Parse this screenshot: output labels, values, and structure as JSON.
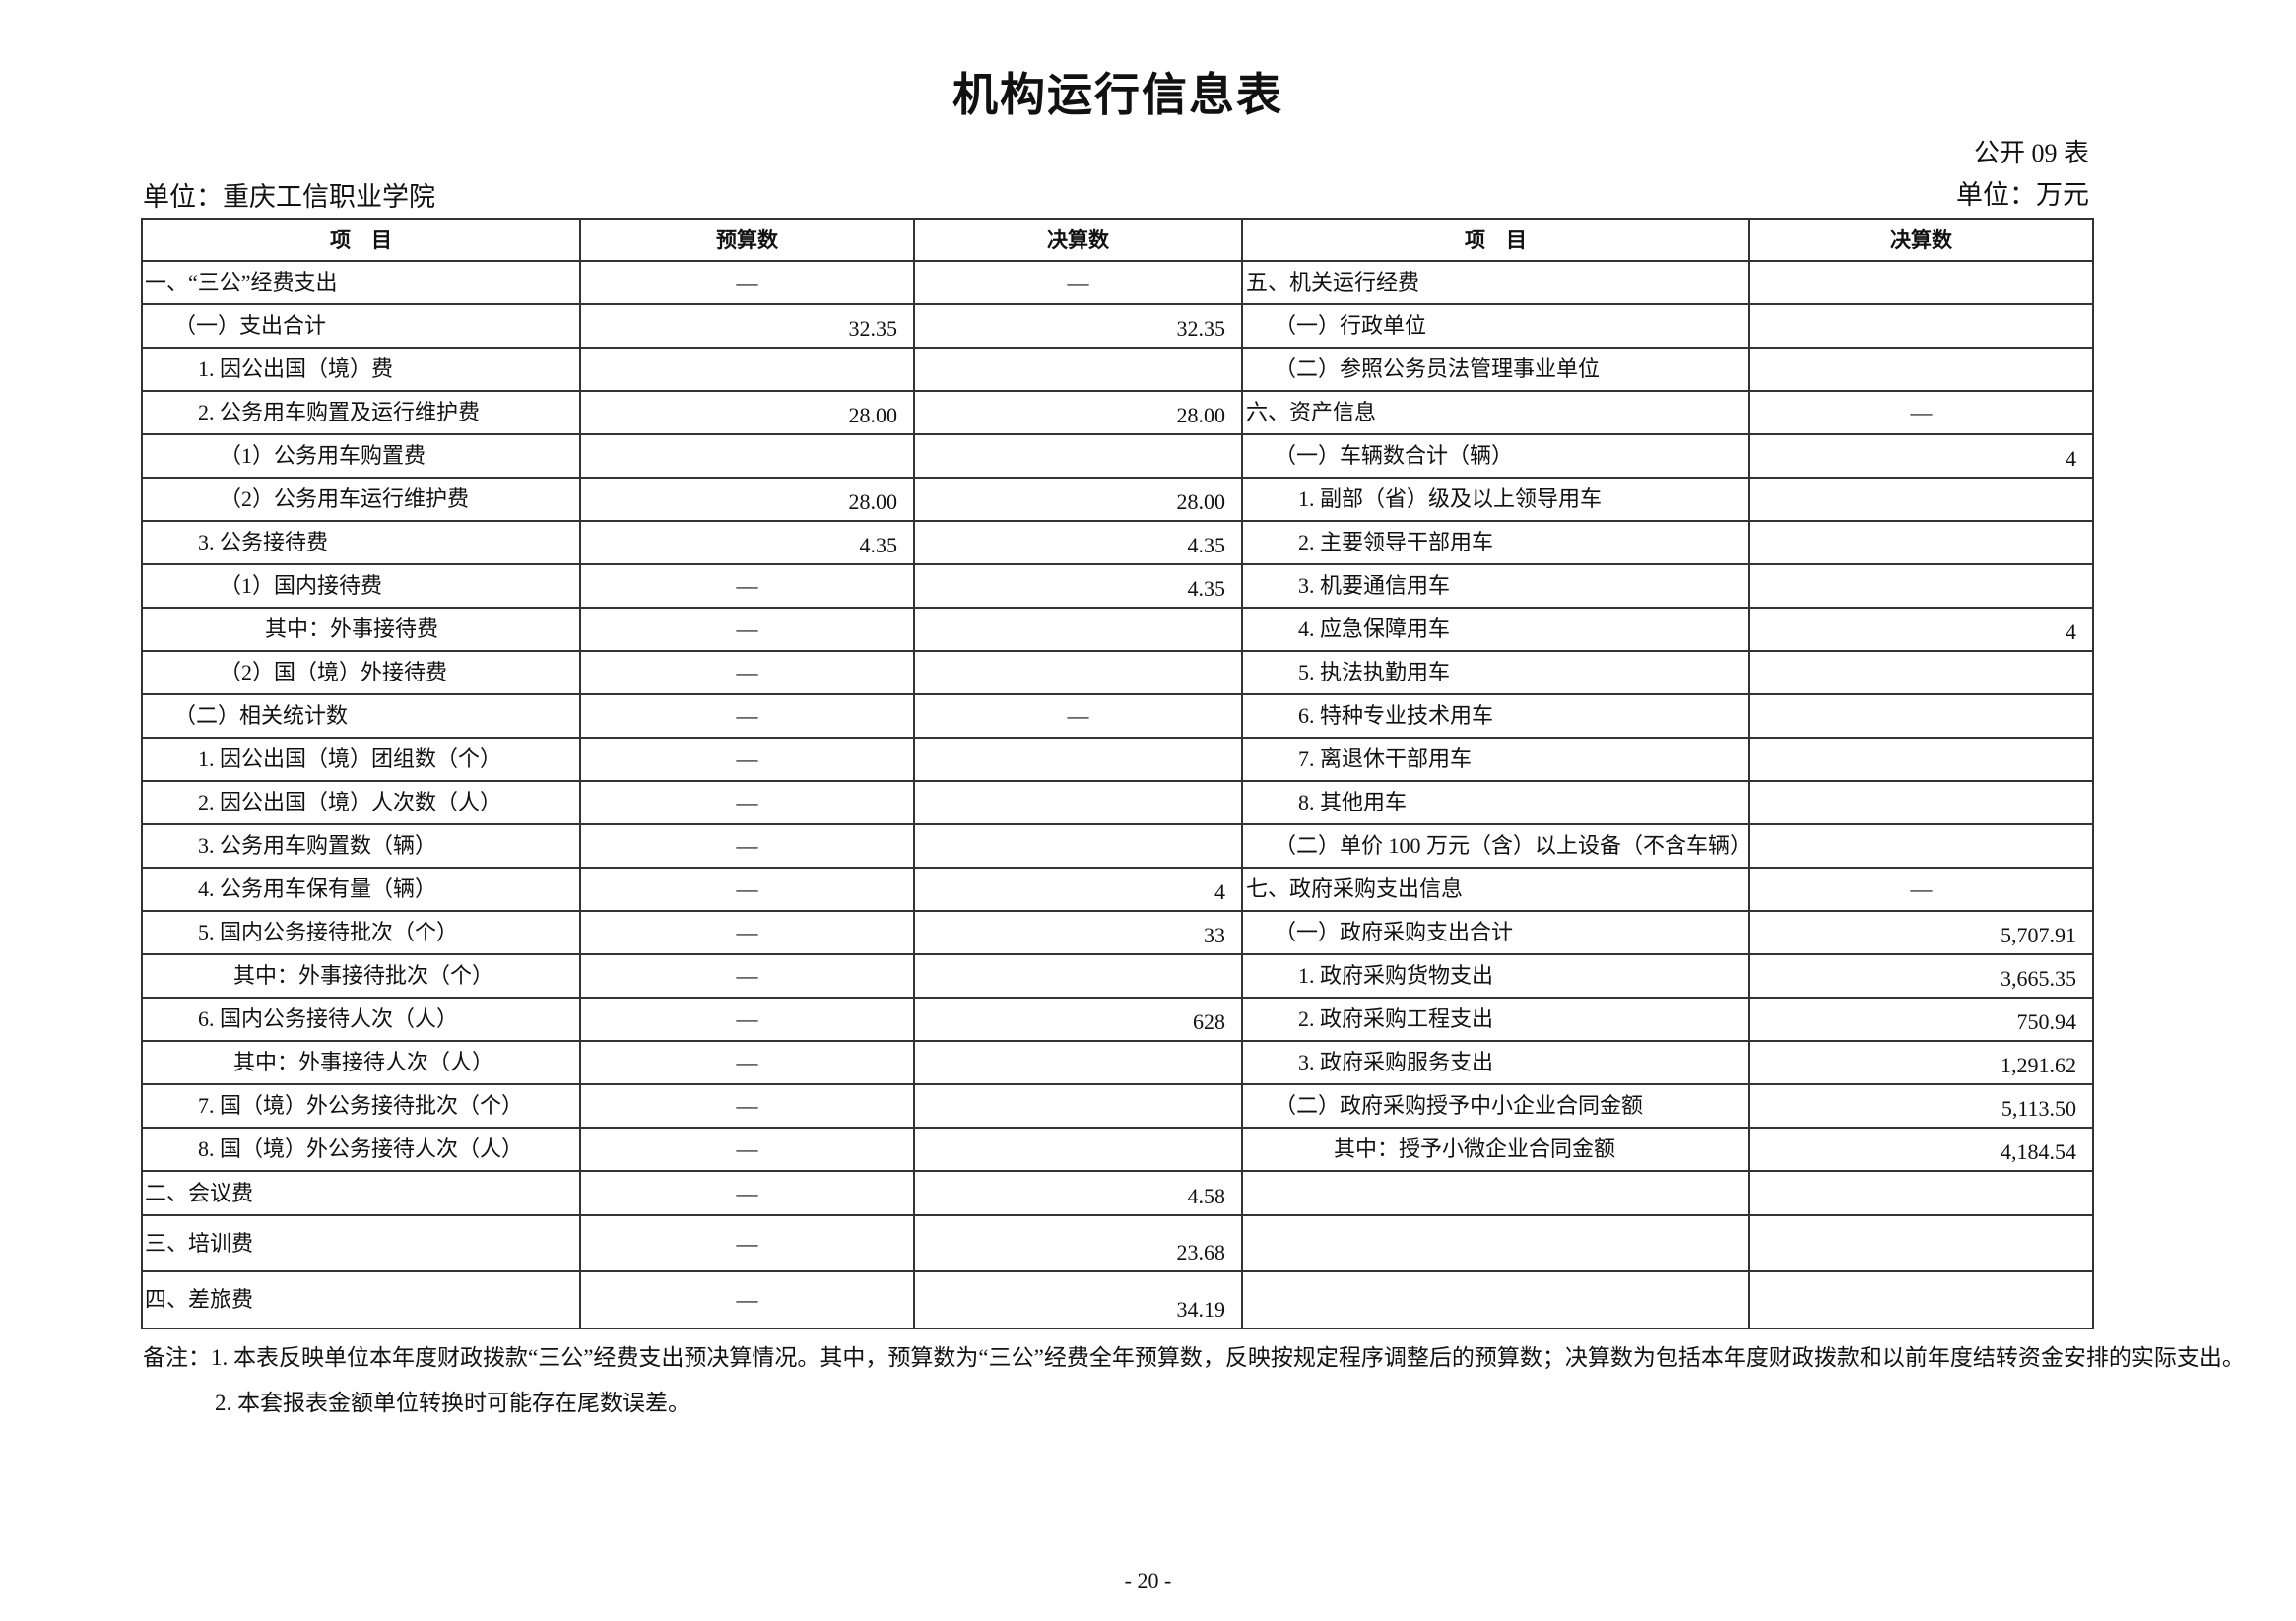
{
  "title": "机构运行信息表",
  "table_no": "公开 09 表",
  "unit_name": "单位：重庆工信职业学院",
  "unit_currency": "单位：万元",
  "headers": [
    "项　目",
    "预算数",
    "决算数",
    "项　目",
    "决算数"
  ],
  "rows": [
    {
      "left": {
        "label": "一、“三公”经费支出",
        "level": 0,
        "budget": "—",
        "final": "—"
      },
      "right": {
        "label": "五、机关运行经费",
        "level": 0,
        "value": ""
      }
    },
    {
      "left": {
        "label": "（一）支出合计",
        "level": 1,
        "budget": "32.35",
        "final": "32.35"
      },
      "right": {
        "label": "（一）行政单位",
        "level": 1,
        "value": ""
      }
    },
    {
      "left": {
        "label": "1. 因公出国（境）费",
        "level": 2,
        "budget": "",
        "final": ""
      },
      "right": {
        "label": "（二）参照公务员法管理事业单位",
        "level": 1,
        "value": ""
      }
    },
    {
      "left": {
        "label": "2. 公务用车购置及运行维护费",
        "level": 2,
        "budget": "28.00",
        "final": "28.00"
      },
      "right": {
        "label": "六、资产信息",
        "level": 0,
        "value": "—"
      }
    },
    {
      "left": {
        "label": "（1）公务用车购置费",
        "level": 3,
        "budget": "",
        "final": ""
      },
      "right": {
        "label": "（一）车辆数合计（辆）",
        "level": 1,
        "value": "4"
      }
    },
    {
      "left": {
        "label": "（2）公务用车运行维护费",
        "level": 3,
        "budget": "28.00",
        "final": "28.00"
      },
      "right": {
        "label": "1. 副部（省）级及以上领导用车",
        "level": 2,
        "value": ""
      }
    },
    {
      "left": {
        "label": "3. 公务接待费",
        "level": 2,
        "budget": "4.35",
        "final": "4.35"
      },
      "right": {
        "label": "2. 主要领导干部用车",
        "level": 2,
        "value": ""
      }
    },
    {
      "left": {
        "label": "（1）国内接待费",
        "level": 3,
        "budget": "—",
        "final": "4.35"
      },
      "right": {
        "label": "3. 机要通信用车",
        "level": 2,
        "value": ""
      }
    },
    {
      "left": {
        "label": "其中：外事接待费",
        "level": 5,
        "budget": "—",
        "final": ""
      },
      "right": {
        "label": "4. 应急保障用车",
        "level": 2,
        "value": "4"
      }
    },
    {
      "left": {
        "label": "（2）国（境）外接待费",
        "level": 3,
        "budget": "—",
        "final": ""
      },
      "right": {
        "label": "5. 执法执勤用车",
        "level": 2,
        "value": ""
      }
    },
    {
      "left": {
        "label": "（二）相关统计数",
        "level": 1,
        "budget": "—",
        "final": "—"
      },
      "right": {
        "label": "6. 特种专业技术用车",
        "level": 2,
        "value": ""
      }
    },
    {
      "left": {
        "label": "1. 因公出国（境）团组数（个）",
        "level": 2,
        "budget": "—",
        "final": ""
      },
      "right": {
        "label": "7. 离退休干部用车",
        "level": 2,
        "value": ""
      }
    },
    {
      "left": {
        "label": "2. 因公出国（境）人次数（人）",
        "level": 2,
        "budget": "—",
        "final": ""
      },
      "right": {
        "label": "8. 其他用车",
        "level": 2,
        "value": ""
      }
    },
    {
      "left": {
        "label": "3. 公务用车购置数（辆）",
        "level": 2,
        "budget": "—",
        "final": ""
      },
      "right": {
        "label": "（二）单价 100 万元（含）以上设备（不含车辆）",
        "level": 1,
        "value": ""
      }
    },
    {
      "left": {
        "label": "4. 公务用车保有量（辆）",
        "level": 2,
        "budget": "—",
        "final": "4"
      },
      "right": {
        "label": "七、政府采购支出信息",
        "level": 0,
        "value": "—"
      }
    },
    {
      "left": {
        "label": "5. 国内公务接待批次（个）",
        "level": 2,
        "budget": "—",
        "final": "33"
      },
      "right": {
        "label": "（一）政府采购支出合计",
        "level": 1,
        "value": "5,707.91"
      }
    },
    {
      "left": {
        "label": "其中：外事接待批次（个）",
        "level": 4,
        "budget": "—",
        "final": ""
      },
      "right": {
        "label": "1. 政府采购货物支出",
        "level": 2,
        "value": "3,665.35"
      }
    },
    {
      "left": {
        "label": "6. 国内公务接待人次（人）",
        "level": 2,
        "budget": "—",
        "final": "628"
      },
      "right": {
        "label": "2. 政府采购工程支出",
        "level": 2,
        "value": "750.94"
      }
    },
    {
      "left": {
        "label": "其中：外事接待人次（人）",
        "level": 4,
        "budget": "—",
        "final": ""
      },
      "right": {
        "label": "3. 政府采购服务支出",
        "level": 2,
        "value": "1,291.62"
      }
    },
    {
      "left": {
        "label": "7. 国（境）外公务接待批次（个）",
        "level": 2,
        "budget": "—",
        "final": ""
      },
      "right": {
        "label": "（二）政府采购授予中小企业合同金额",
        "level": 1,
        "value": "5,113.50"
      }
    },
    {
      "left": {
        "label": "8. 国（境）外公务接待人次（人）",
        "level": 2,
        "budget": "—",
        "final": ""
      },
      "right": {
        "label": "其中：授予小微企业合同金额",
        "level": 5,
        "value": "4,184.54"
      }
    },
    {
      "left": {
        "label": "二、会议费",
        "level": 0,
        "budget": "—",
        "final": "4.58"
      },
      "right": {
        "label": "",
        "level": 0,
        "value": ""
      }
    },
    {
      "left": {
        "label": "三、培训费",
        "level": 0,
        "budget": "—",
        "final": "23.68"
      },
      "right": {
        "label": "",
        "level": 0,
        "value": ""
      }
    },
    {
      "left": {
        "label": "四、差旅费",
        "level": 0,
        "budget": "—",
        "final": "34.19"
      },
      "right": {
        "label": "",
        "level": 0,
        "value": ""
      }
    }
  ],
  "notes": [
    "备注：1. 本表反映单位本年度财政拨款“三公”经费支出预决算情况。其中，预算数为“三公”经费全年预算数，反映按规定程序调整后的预算数；决算数为包括本年度财政拨款和以前年度结转资金安排的实际支出。",
    "2. 本套报表金额单位转换时可能存在尾数误差。"
  ],
  "page_number": "- 20 -"
}
